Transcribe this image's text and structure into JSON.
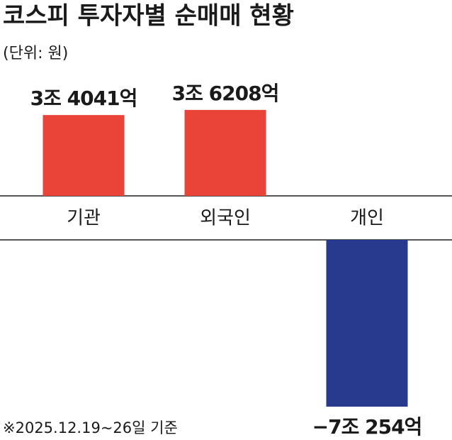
{
  "chart_data": {
    "type": "bar",
    "title": "코스피 투자자별 순매매 현황",
    "subtitle": "(단위: 원)",
    "note": "※2025.12.19~26일 기준",
    "categories": [
      "기관",
      "외국인",
      "개인"
    ],
    "values": [
      3404100000000,
      3620800000000,
      -7025400000000
    ],
    "value_labels": [
      "3조 4041억",
      "3조 6208억",
      "−7조 254억"
    ],
    "colors": [
      "#ea4338",
      "#ea4338",
      "#283a8d"
    ]
  }
}
